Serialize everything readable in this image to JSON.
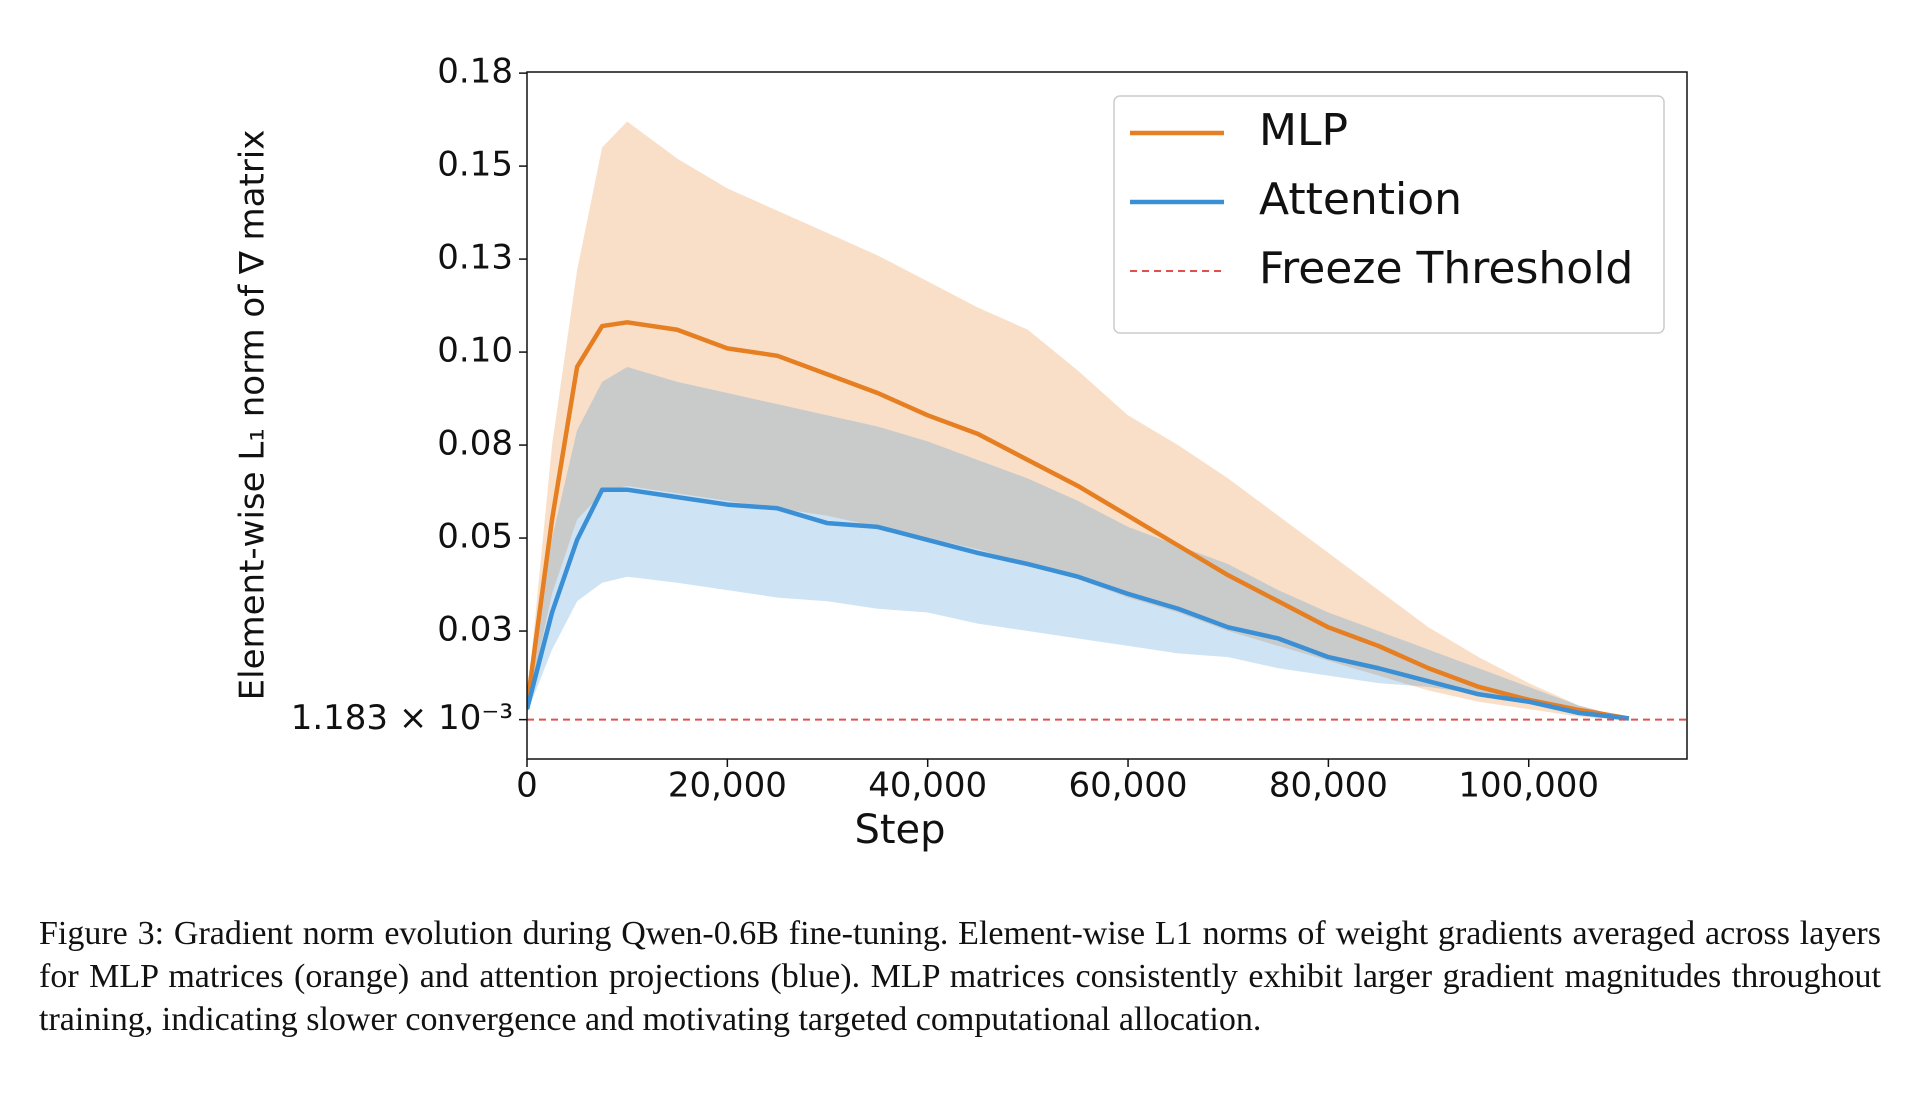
{
  "chart_data": {
    "type": "line",
    "ylabel": "Element-wise L₁ norm of ∇ matrix",
    "xlabel": "Step",
    "x": [
      0,
      2500,
      5000,
      7500,
      10000,
      15000,
      20000,
      25000,
      30000,
      35000,
      40000,
      45000,
      50000,
      55000,
      60000,
      65000,
      70000,
      75000,
      80000,
      85000,
      90000,
      95000,
      100000,
      105000,
      110000
    ],
    "series": [
      {
        "name": "MLP",
        "color": "#e67e22",
        "values": [
          0.0048,
          0.055,
          0.096,
          0.107,
          0.108,
          0.106,
          0.101,
          0.099,
          0.094,
          0.089,
          0.083,
          0.078,
          0.071,
          0.064,
          0.056,
          0.048,
          0.04,
          0.033,
          0.026,
          0.021,
          0.015,
          0.01,
          0.0065,
          0.0038,
          0.0015
        ],
        "upper": [
          0.006,
          0.075,
          0.122,
          0.155,
          0.162,
          0.152,
          0.144,
          0.138,
          0.132,
          0.126,
          0.119,
          0.112,
          0.106,
          0.095,
          0.083,
          0.075,
          0.066,
          0.056,
          0.046,
          0.036,
          0.026,
          0.018,
          0.011,
          0.005,
          0.0015
        ],
        "lower": [
          0.004,
          0.035,
          0.055,
          0.062,
          0.064,
          0.062,
          0.06,
          0.058,
          0.056,
          0.053,
          0.05,
          0.047,
          0.043,
          0.039,
          0.034,
          0.03,
          0.025,
          0.021,
          0.017,
          0.013,
          0.009,
          0.006,
          0.004,
          0.002,
          0.001
        ]
      },
      {
        "name": "Attention",
        "color": "#3b8fd4",
        "values": [
          0.004,
          0.03,
          0.0495,
          0.063,
          0.063,
          0.061,
          0.059,
          0.058,
          0.054,
          0.053,
          0.0495,
          0.046,
          0.043,
          0.0396,
          0.035,
          0.031,
          0.026,
          0.023,
          0.018,
          0.015,
          0.0115,
          0.008,
          0.006,
          0.003,
          0.0015
        ],
        "upper": [
          0.005,
          0.05,
          0.079,
          0.092,
          0.096,
          0.092,
          0.089,
          0.086,
          0.083,
          0.08,
          0.076,
          0.071,
          0.066,
          0.06,
          0.053,
          0.048,
          0.043,
          0.036,
          0.03,
          0.025,
          0.02,
          0.015,
          0.01,
          0.005,
          0.0015
        ],
        "lower": [
          0.003,
          0.02,
          0.033,
          0.038,
          0.0396,
          0.038,
          0.036,
          0.034,
          0.033,
          0.031,
          0.03,
          0.027,
          0.025,
          0.023,
          0.021,
          0.019,
          0.018,
          0.015,
          0.013,
          0.011,
          0.01,
          0.008,
          0.006,
          0.003,
          0.0015
        ]
      }
    ],
    "band_opacity": 0.25,
    "hlines": [
      {
        "name": "Freeze Threshold",
        "value": 0.001183,
        "color": "#e05050"
      }
    ],
    "xlim": [
      0,
      115800
    ],
    "ylim": [
      -0.0094,
      0.1753
    ],
    "xticks": [
      0,
      {
        "value": 20000,
        "label": "20,000"
      },
      {
        "value": 40000,
        "label": "40,000"
      },
      {
        "value": 60000,
        "label": "60,000"
      },
      {
        "value": 80000,
        "label": "80,000"
      },
      {
        "value": 100000,
        "label": "100,000"
      }
    ],
    "yticks": [
      {
        "value": 0.001183,
        "label": "1.183 × 10⁻³"
      },
      {
        "value": 0.025,
        "label": "0.03"
      },
      0.05,
      {
        "value": 0.075,
        "label": "0.08"
      },
      {
        "value": 0.1,
        "label": "0.10"
      },
      {
        "value": 0.125,
        "label": "0.13"
      },
      0.15,
      {
        "value": 0.175,
        "label": "0.18"
      }
    ],
    "legend": "upper right",
    "grid": false
  },
  "caption": "Figure 3: Gradient norm evolution during Qwen-0.6B fine-tuning. Element-wise L1 norms of weight gradients averaged across layers for MLP matrices (orange) and attention projections (blue). MLP matrices consistently exhibit larger gradient magnitudes throughout training, indicating slower convergence and motivating targeted computational allocation."
}
